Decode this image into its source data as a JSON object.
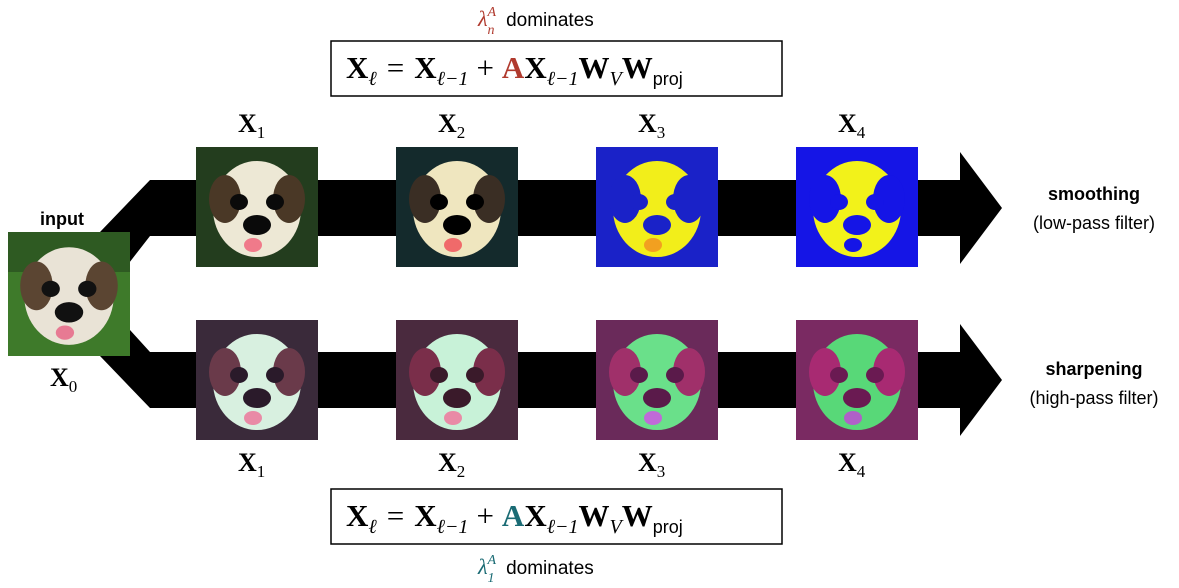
{
  "top": {
    "caption": {
      "lambda_sub": "n",
      "lambda_sup": "A",
      "text": "dominates",
      "color": "#b03a2e"
    },
    "equation": {
      "accent_letter": "A",
      "accent_color": "#b03a2e"
    },
    "column_labels": [
      "1",
      "2",
      "3",
      "4"
    ],
    "result_title": "smoothing",
    "result_sub": "(low-pass filter)"
  },
  "bottom": {
    "caption": {
      "lambda_sub": "1",
      "lambda_sup": "A",
      "text": "dominates",
      "color": "#1a6b74"
    },
    "equation": {
      "accent_letter": "A",
      "accent_color": "#1a6b74"
    },
    "column_labels": [
      "1",
      "2",
      "3",
      "4"
    ],
    "result_title": "sharpening",
    "result_sub": "(high-pass filter)"
  },
  "input": {
    "title": "input",
    "label_sub": "0"
  },
  "equation_parts": {
    "lhs_var": "X",
    "lhs_sub": "ℓ",
    "eq": "=",
    "var": "X",
    "prev_sub": "ℓ−1",
    "plus": "+",
    "w_var": "W",
    "w_v_sub": "V",
    "w_proj_sub": "proj"
  },
  "images": {
    "input": "shih-tzu dog photo",
    "top": [
      "dog X1 smoothed",
      "dog X2 smoothed",
      "dog X3 blue-yellow",
      "dog X4 blue-yellow"
    ],
    "bottom": [
      "dog X1 sharpened",
      "dog X2 sharpened",
      "dog X3 green-magenta",
      "dog X4 green-magenta"
    ]
  }
}
